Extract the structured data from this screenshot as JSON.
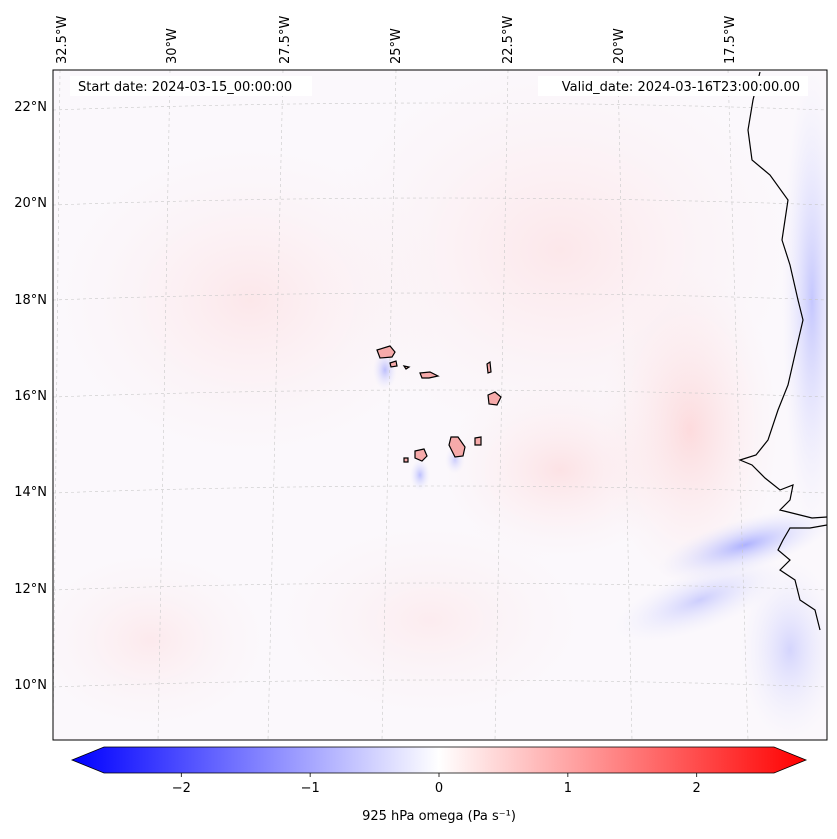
{
  "map": {
    "start_date_label": "Start date: 2024-03-15_00:00:00",
    "valid_date_label": "Valid_date: 2024-03-16T23:00:00.00",
    "longitude_labels": [
      "32.5°W",
      "30°W",
      "27.5°W",
      "25°W",
      "22.5°W",
      "20°W",
      "17.5°W"
    ],
    "latitude_labels": [
      "22°N",
      "20°N",
      "18°N",
      "16°N",
      "14°N",
      "12°N",
      "10°N"
    ],
    "variable": "925 hPa omega",
    "units": "Pa s⁻¹",
    "region": "Cabo Verde and West African coast"
  },
  "colorbar": {
    "label": "925 hPa omega (Pa s⁻¹)",
    "min": -2.6,
    "max": 2.6,
    "ticks": [
      -2,
      -1,
      0,
      1,
      2
    ],
    "tick_labels": [
      "−2",
      "−1",
      "0",
      "1",
      "2"
    ],
    "colormap": "bwr",
    "low_color": "#0000ff",
    "mid_color": "#ffffff",
    "high_color": "#ff0000"
  }
}
